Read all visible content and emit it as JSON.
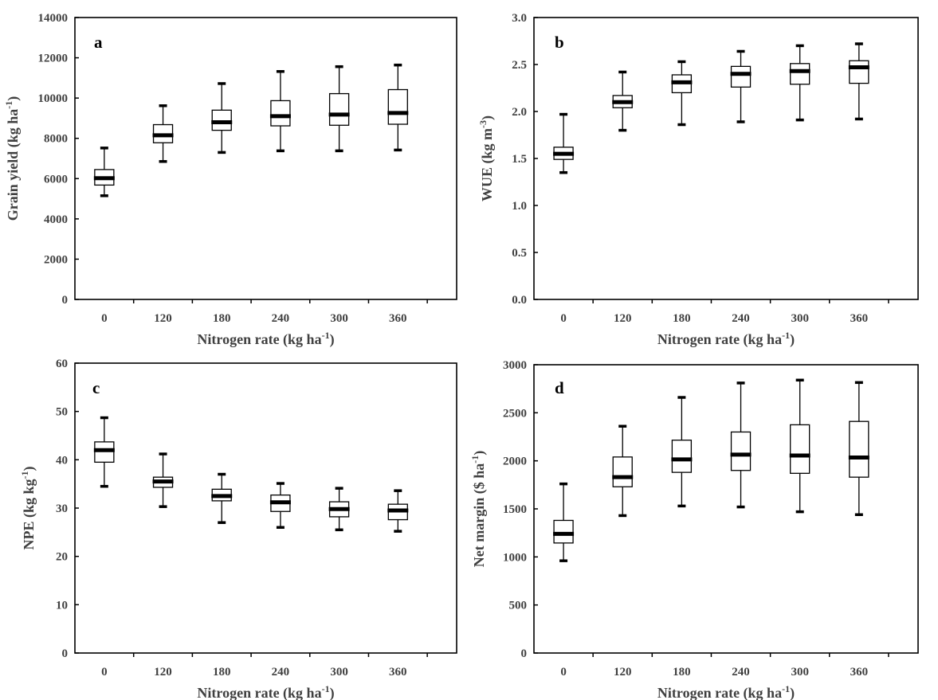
{
  "chart_data": [
    {
      "type": "box",
      "panel_label": "a",
      "categories": [
        "0",
        "120",
        "180",
        "240",
        "300",
        "360"
      ],
      "ylabel": {
        "main": "Grain yield (kg ha",
        "sup": "-1",
        "end": ")"
      },
      "xlabel": {
        "main": "Nitrogen rate (kg ha",
        "sup": "-1",
        "end": ")"
      },
      "ylim": [
        0,
        14000
      ],
      "yticks": [
        "0",
        "2000",
        "4000",
        "6000",
        "8000",
        "10000",
        "12000",
        "14000"
      ],
      "boxes": [
        {
          "min": 5150,
          "q1": 5680,
          "median": 6020,
          "q3": 6450,
          "max": 7520
        },
        {
          "min": 6850,
          "q1": 7780,
          "median": 8150,
          "q3": 8680,
          "max": 9620
        },
        {
          "min": 7300,
          "q1": 8400,
          "median": 8800,
          "q3": 9400,
          "max": 10720
        },
        {
          "min": 7380,
          "q1": 8620,
          "median": 9100,
          "q3": 9870,
          "max": 11320
        },
        {
          "min": 7380,
          "q1": 8650,
          "median": 9180,
          "q3": 10220,
          "max": 11560
        },
        {
          "min": 7420,
          "q1": 8700,
          "median": 9260,
          "q3": 10420,
          "max": 11640
        }
      ]
    },
    {
      "type": "box",
      "panel_label": "b",
      "categories": [
        "0",
        "120",
        "180",
        "240",
        "300",
        "360"
      ],
      "ylabel": {
        "main": "WUE (kg m",
        "sup": "-3",
        "end": ")"
      },
      "xlabel": {
        "main": "Nitrogen rate (kg ha",
        "sup": "-1",
        "end": ")"
      },
      "ylim": [
        0,
        3.0
      ],
      "yticks": [
        "0.0",
        "0.5",
        "1.0",
        "1.5",
        "2.0",
        "2.5",
        "3.0"
      ],
      "boxes": [
        {
          "min": 1.35,
          "q1": 1.49,
          "median": 1.55,
          "q3": 1.62,
          "max": 1.97
        },
        {
          "min": 1.8,
          "q1": 2.04,
          "median": 2.1,
          "q3": 2.17,
          "max": 2.42
        },
        {
          "min": 1.86,
          "q1": 2.2,
          "median": 2.31,
          "q3": 2.39,
          "max": 2.53
        },
        {
          "min": 1.89,
          "q1": 2.26,
          "median": 2.4,
          "q3": 2.48,
          "max": 2.64
        },
        {
          "min": 1.91,
          "q1": 2.29,
          "median": 2.43,
          "q3": 2.51,
          "max": 2.7
        },
        {
          "min": 1.92,
          "q1": 2.3,
          "median": 2.47,
          "q3": 2.54,
          "max": 2.72
        }
      ]
    },
    {
      "type": "box",
      "panel_label": "c",
      "categories": [
        "0",
        "120",
        "180",
        "240",
        "300",
        "360"
      ],
      "ylabel": {
        "main": "NPE (kg kg",
        "sup": "-1",
        "end": ")"
      },
      "xlabel": {
        "main": "Nitrogen rate (kg ha",
        "sup": "-1",
        "end": ")"
      },
      "ylim": [
        0,
        60
      ],
      "yticks": [
        "0",
        "10",
        "20",
        "30",
        "40",
        "50",
        "60"
      ],
      "boxes": [
        {
          "min": 34.5,
          "q1": 39.5,
          "median": 42.0,
          "q3": 43.7,
          "max": 48.7
        },
        {
          "min": 30.3,
          "q1": 34.3,
          "median": 35.5,
          "q3": 36.4,
          "max": 41.2
        },
        {
          "min": 27.0,
          "q1": 31.5,
          "median": 32.5,
          "q3": 33.9,
          "max": 37.0
        },
        {
          "min": 26.0,
          "q1": 29.3,
          "median": 31.2,
          "q3": 32.7,
          "max": 35.1
        },
        {
          "min": 25.5,
          "q1": 28.2,
          "median": 29.8,
          "q3": 31.3,
          "max": 34.1
        },
        {
          "min": 25.2,
          "q1": 27.6,
          "median": 29.5,
          "q3": 30.8,
          "max": 33.6
        }
      ]
    },
    {
      "type": "box",
      "panel_label": "d",
      "categories": [
        "0",
        "120",
        "180",
        "240",
        "300",
        "360"
      ],
      "ylabel": {
        "main": "Net margin ($ ha",
        "sup": "-1",
        "end": ")"
      },
      "xlabel": {
        "main": "Nitrogen rate (kg ha",
        "sup": "-1",
        "end": ")"
      },
      "ylim": [
        0,
        3000
      ],
      "yticks": [
        "0",
        "500",
        "1000",
        "1500",
        "2000",
        "2500",
        "3000"
      ],
      "boxes": [
        {
          "min": 960,
          "q1": 1145,
          "median": 1240,
          "q3": 1380,
          "max": 1760
        },
        {
          "min": 1430,
          "q1": 1730,
          "median": 1830,
          "q3": 2040,
          "max": 2360
        },
        {
          "min": 1530,
          "q1": 1880,
          "median": 2015,
          "q3": 2215,
          "max": 2660
        },
        {
          "min": 1520,
          "q1": 1900,
          "median": 2065,
          "q3": 2300,
          "max": 2810
        },
        {
          "min": 1470,
          "q1": 1870,
          "median": 2055,
          "q3": 2375,
          "max": 2840
        },
        {
          "min": 1440,
          "q1": 1830,
          "median": 2035,
          "q3": 2410,
          "max": 2815
        }
      ]
    }
  ]
}
